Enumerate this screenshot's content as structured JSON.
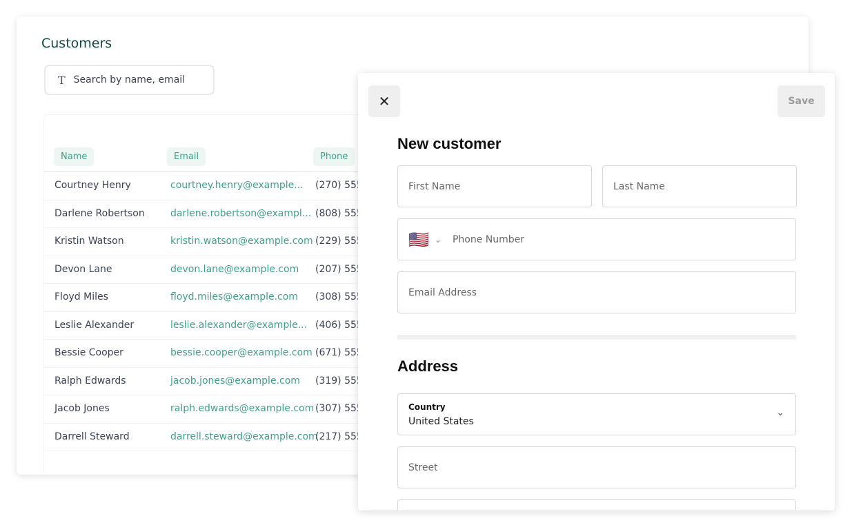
{
  "customers": {
    "title": "Customers",
    "search_placeholder": "Search by name, email",
    "columns": [
      "Name",
      "Email",
      "Phone"
    ],
    "rows": [
      [
        "Courtney Henry",
        "courtney.henry@example...",
        "(270) 555"
      ],
      [
        "Darlene Robertson",
        "darlene.robertson@exampl...",
        "(808) 555"
      ],
      [
        "Kristin Watson",
        "kristin.watson@example.com",
        "(229) 555-"
      ],
      [
        "Devon Lane",
        "devon.lane@example.com",
        "(207) 555"
      ],
      [
        "Floyd Miles",
        "floyd.miles@example.com",
        "(308) 555"
      ],
      [
        "Leslie Alexander",
        "leslie.alexander@example...",
        "(406) 555"
      ],
      [
        "Bessie Cooper",
        "bessie.cooper@example.com",
        "(671) 555-"
      ],
      [
        "Ralph Edwards",
        "jacob.jones@example.com",
        "(319) 555-"
      ],
      [
        "Jacob Jones",
        "ralph.edwards@example.com",
        "(307) 555"
      ],
      [
        "Darrell Steward",
        "darrell.steward@example.com",
        "(217) 555-"
      ]
    ]
  },
  "modal": {
    "close_icon": "close-icon",
    "save_label": "Save",
    "title": "New customer",
    "first_name_placeholder": "First Name",
    "last_name_placeholder": "Last Name",
    "flag": "🇺🇸",
    "phone_placeholder": "Phone Number",
    "email_placeholder": "Email Address",
    "address_title": "Address",
    "country_label": "Country",
    "country_value": "United States",
    "street_placeholder": "Street"
  },
  "colors": {
    "accent": "#3fa08a",
    "title": "#0d4a3d"
  }
}
